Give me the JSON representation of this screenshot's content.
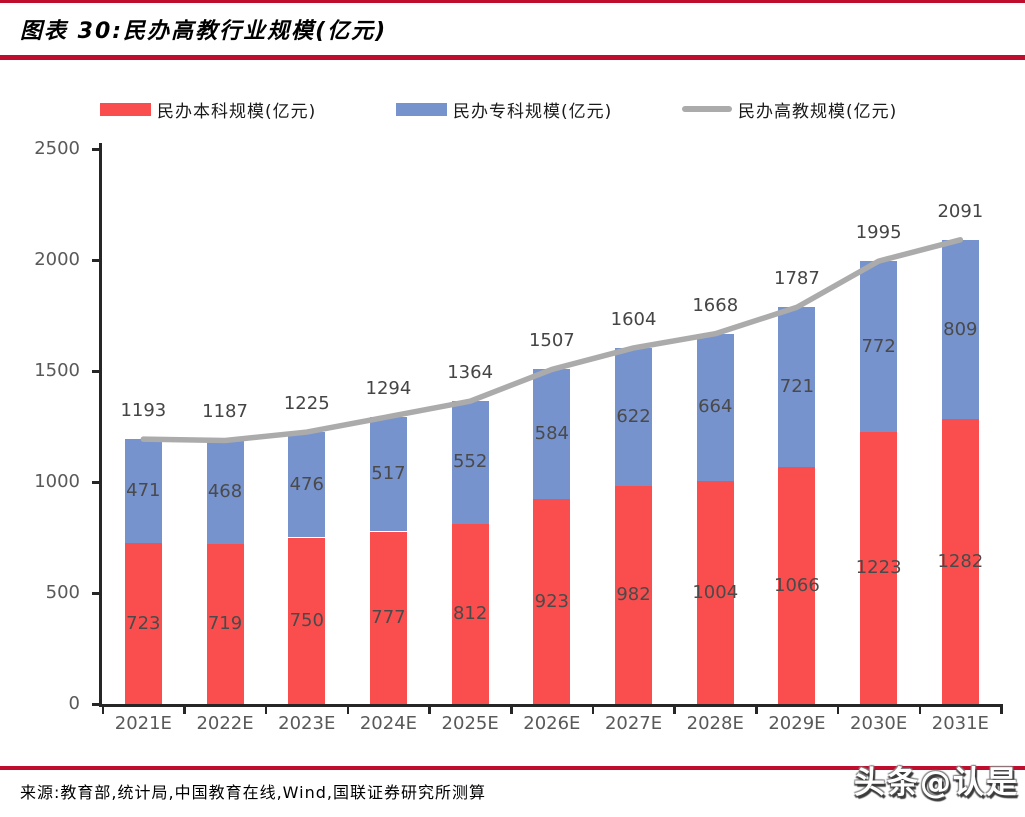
{
  "header": {
    "title": "图表 30:民办高教行业规模(亿元)"
  },
  "legend": [
    {
      "label": "民办本科规模(亿元)",
      "color": "#fa4e4e",
      "swatch": "box"
    },
    {
      "label": "民办专科规模(亿元)",
      "color": "#7693ce",
      "swatch": "box"
    },
    {
      "label": "民办高教规模(亿元)",
      "color": "#ababab",
      "swatch": "line"
    }
  ],
  "chart_data": {
    "type": "bar",
    "subtype": "stacked-bar-with-line",
    "title": "民办高教行业规模(亿元)",
    "categories": [
      "2021E",
      "2022E",
      "2023E",
      "2024E",
      "2025E",
      "2026E",
      "2027E",
      "2028E",
      "2029E",
      "2030E",
      "2031E"
    ],
    "series": [
      {
        "name": "民办本科规模(亿元)",
        "color": "#fa4e4e",
        "values": [
          723,
          719,
          750,
          777,
          812,
          923,
          982,
          1004,
          1066,
          1223,
          1282
        ]
      },
      {
        "name": "民办专科规模(亿元)",
        "color": "#7693ce",
        "values": [
          471,
          468,
          476,
          517,
          552,
          584,
          622,
          664,
          721,
          772,
          809
        ]
      }
    ],
    "line_series": {
      "name": "民办高教规模(亿元)",
      "color": "#ababab",
      "values": [
        1193,
        1187,
        1225,
        1294,
        1364,
        1507,
        1604,
        1668,
        1787,
        1995,
        2091
      ]
    },
    "xlabel": "",
    "ylabel": "",
    "ylim": [
      0,
      2500
    ],
    "ytick_step": 500,
    "yticks": [
      0,
      500,
      1000,
      1500,
      2000,
      2500
    ],
    "grid": false,
    "legend_position": "top"
  },
  "footer": {
    "source": "来源:教育部,统计局,中国教育在线,Wind,国联证券研究所测算"
  },
  "watermark": {
    "text": "头条@认是"
  },
  "colors": {
    "accent_rule": "#bf0d2e",
    "axis": "#262626",
    "value_label": "#4a4a4a",
    "tick_label": "#595959"
  }
}
